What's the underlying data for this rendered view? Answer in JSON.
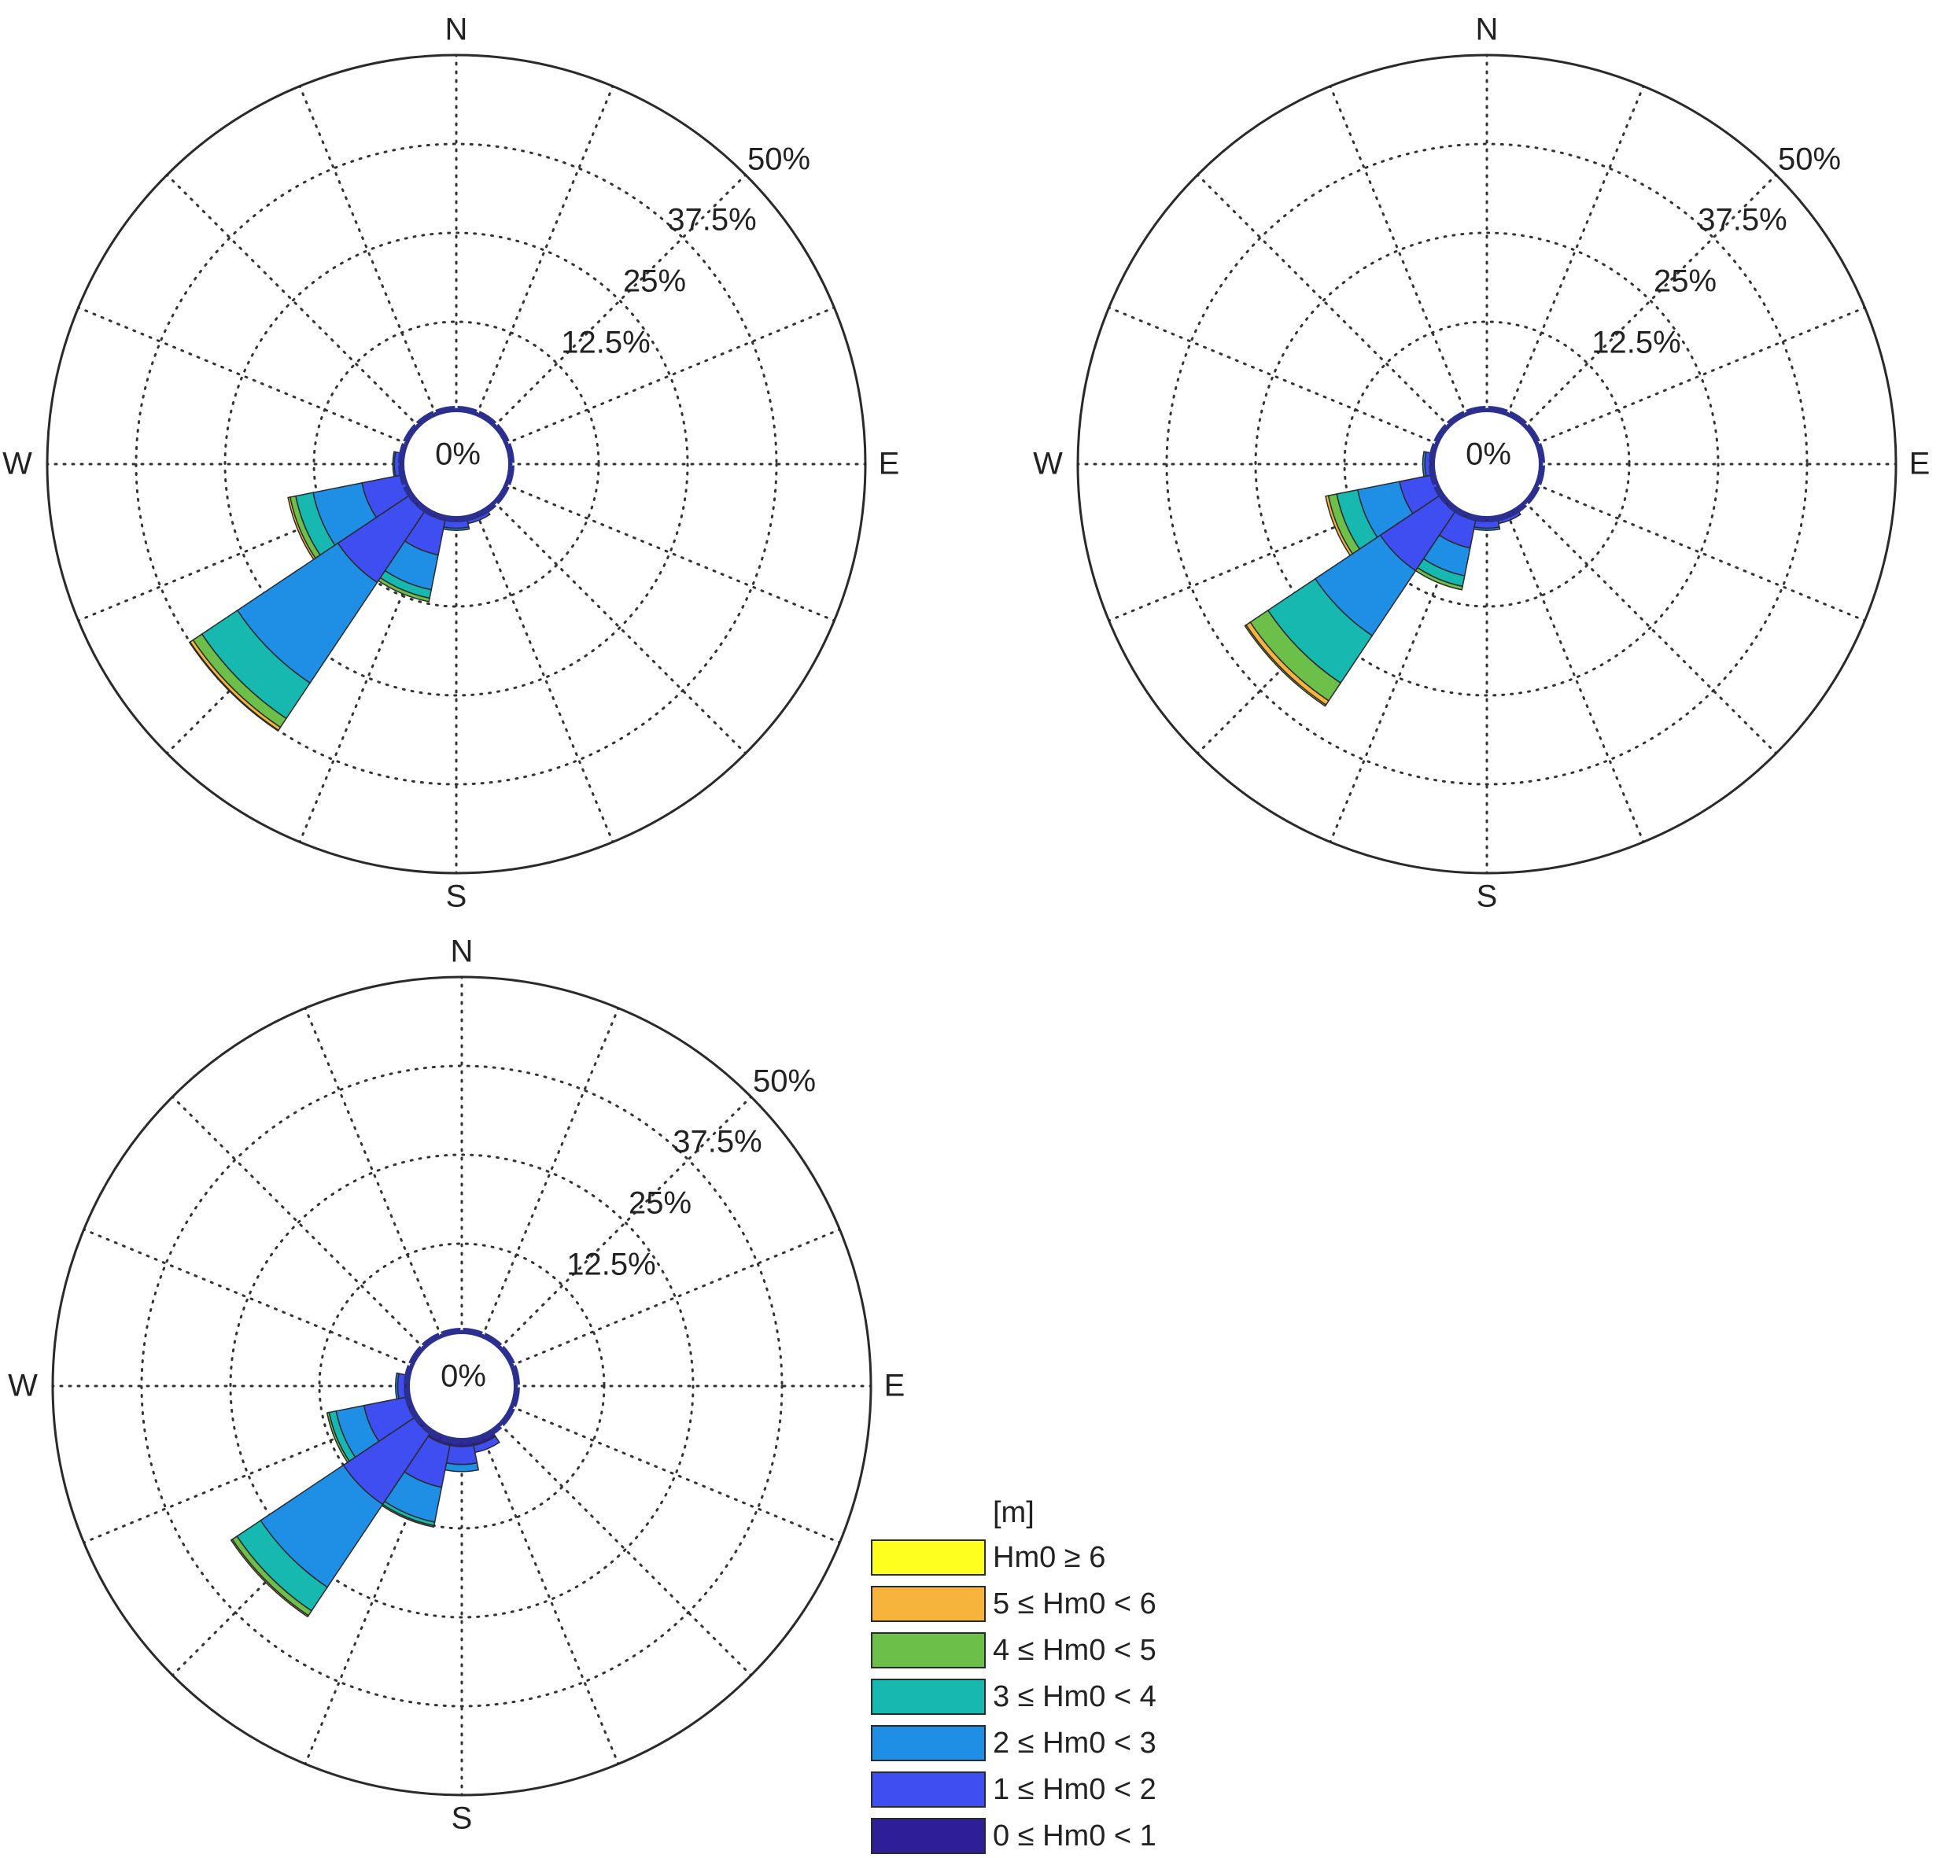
{
  "colors": {
    "bins": [
      "#2e1f99",
      "#3f4ef0",
      "#1f8fe6",
      "#17b8b0",
      "#6cc04a",
      "#f6b43c",
      "#ffff1f"
    ],
    "outline": "#2a2a2a",
    "grid": "#333333",
    "inner_circle": "#2b2f8f"
  },
  "legend": {
    "unit": "[m]",
    "entries": [
      {
        "label": "Hm0 ≥ 6",
        "color": "#ffff1f"
      },
      {
        "label": "5 ≤ Hm0 < 6",
        "color": "#f6b43c"
      },
      {
        "label": "4 ≤ Hm0 < 5",
        "color": "#6cc04a"
      },
      {
        "label": "3 ≤ Hm0 < 4",
        "color": "#17b8b0"
      },
      {
        "label": "2 ≤ Hm0 < 3",
        "color": "#1f8fe6"
      },
      {
        "label": "1 ≤ Hm0 < 2",
        "color": "#3f4ef0"
      },
      {
        "label": "0 ≤ Hm0 < 1",
        "color": "#2e1f99"
      }
    ]
  },
  "chart_data": [
    {
      "type": "polar-stacked-bar",
      "panel": "top-left",
      "compass": {
        "N": "N",
        "E": "E",
        "S": "S",
        "W": "W"
      },
      "radial_ticks": [
        "0%",
        "12.5%",
        "25%",
        "37.5%",
        "50%"
      ],
      "rlim": [
        0,
        50
      ],
      "grid": true,
      "sectors": [
        {
          "direction_deg": 247.5,
          "values": [
            0,
            6,
            7,
            2.5,
            0.8,
            0.3,
            0
          ]
        },
        {
          "direction_deg": 225,
          "values": [
            0.5,
            12,
            17,
            6,
            1.5,
            0.5,
            0.1
          ]
        },
        {
          "direction_deg": 202.5,
          "values": [
            0.5,
            5,
            5,
            1.2,
            0.5,
            0,
            0
          ]
        },
        {
          "direction_deg": 180,
          "values": [
            0.5,
            1,
            0.3,
            0,
            0,
            0,
            0
          ]
        },
        {
          "direction_deg": 157.5,
          "values": [
            0.5,
            0.5,
            0,
            0,
            0,
            0,
            0
          ]
        },
        {
          "direction_deg": 270,
          "values": [
            0.4,
            0.8,
            0.2,
            0,
            0,
            0,
            0
          ]
        }
      ]
    },
    {
      "type": "polar-stacked-bar",
      "panel": "top-right",
      "compass": {
        "N": "N",
        "E": "E",
        "S": "S",
        "W": "W"
      },
      "radial_ticks": [
        "0%",
        "12.5%",
        "25%",
        "37.5%",
        "50%"
      ],
      "rlim": [
        0,
        50
      ],
      "grid": true,
      "sectors": [
        {
          "direction_deg": 247.5,
          "values": [
            0,
            5,
            6,
            3,
            1.2,
            0.4,
            0
          ]
        },
        {
          "direction_deg": 225,
          "values": [
            0.5,
            10,
            11,
            8,
            3,
            0.7,
            0.2
          ]
        },
        {
          "direction_deg": 202.5,
          "values": [
            0.5,
            4,
            4,
            1.5,
            0.5,
            0,
            0
          ]
        },
        {
          "direction_deg": 180,
          "values": [
            0.5,
            1,
            0.3,
            0,
            0,
            0,
            0
          ]
        },
        {
          "direction_deg": 157.5,
          "values": [
            0.5,
            0.5,
            0,
            0,
            0,
            0,
            0
          ]
        },
        {
          "direction_deg": 270,
          "values": [
            0.4,
            0.8,
            0.3,
            0,
            0,
            0,
            0
          ]
        }
      ]
    },
    {
      "type": "polar-stacked-bar",
      "panel": "bottom-left",
      "compass": {
        "N": "N",
        "E": "E",
        "S": "S",
        "W": "W"
      },
      "radial_ticks": [
        "0%",
        "12.5%",
        "25%",
        "37.5%",
        "50%"
      ],
      "rlim": [
        0,
        50
      ],
      "grid": true,
      "sectors": [
        {
          "direction_deg": 247.5,
          "values": [
            0.5,
            6,
            4,
            1,
            0.3,
            0,
            0
          ]
        },
        {
          "direction_deg": 225,
          "values": [
            0.5,
            12,
            14,
            4,
            0.8,
            0.2,
            0
          ]
        },
        {
          "direction_deg": 202.5,
          "values": [
            1,
            6,
            5,
            0.5,
            0.2,
            0,
            0
          ]
        },
        {
          "direction_deg": 180,
          "values": [
            1,
            2.5,
            1,
            0,
            0,
            0,
            0
          ]
        },
        {
          "direction_deg": 157.5,
          "values": [
            1,
            1,
            0,
            0,
            0,
            0,
            0
          ]
        },
        {
          "direction_deg": 270,
          "values": [
            0.5,
            1,
            0.3,
            0,
            0,
            0,
            0
          ]
        }
      ]
    }
  ]
}
